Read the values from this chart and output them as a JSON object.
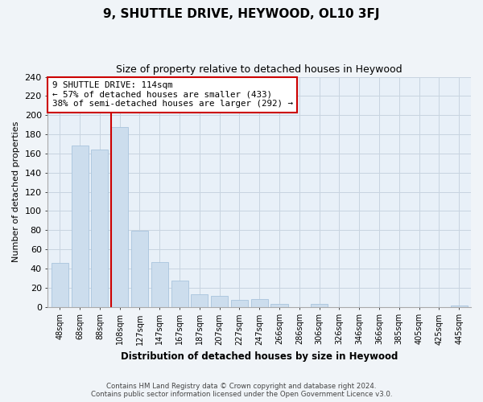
{
  "title": "9, SHUTTLE DRIVE, HEYWOOD, OL10 3FJ",
  "subtitle": "Size of property relative to detached houses in Heywood",
  "xlabel": "Distribution of detached houses by size in Heywood",
  "ylabel": "Number of detached properties",
  "bar_labels": [
    "48sqm",
    "68sqm",
    "88sqm",
    "108sqm",
    "127sqm",
    "147sqm",
    "167sqm",
    "187sqm",
    "207sqm",
    "227sqm",
    "247sqm",
    "266sqm",
    "286sqm",
    "306sqm",
    "326sqm",
    "346sqm",
    "366sqm",
    "385sqm",
    "405sqm",
    "425sqm",
    "445sqm"
  ],
  "bar_values": [
    46,
    168,
    164,
    188,
    79,
    47,
    27,
    13,
    11,
    7,
    8,
    3,
    0,
    3,
    0,
    0,
    0,
    0,
    0,
    0,
    1
  ],
  "bar_color": "#ccdded",
  "bar_edge_color": "#a8c4dd",
  "vline_x": 3.0,
  "vline_color": "#cc0000",
  "annotation_line1": "9 SHUTTLE DRIVE: 114sqm",
  "annotation_line2": "← 57% of detached houses are smaller (433)",
  "annotation_line3": "38% of semi-detached houses are larger (292) →",
  "annotation_box_color": "white",
  "annotation_box_edge": "#cc0000",
  "ylim": [
    0,
    240
  ],
  "yticks": [
    0,
    20,
    40,
    60,
    80,
    100,
    120,
    140,
    160,
    180,
    200,
    220,
    240
  ],
  "footer_line1": "Contains HM Land Registry data © Crown copyright and database right 2024.",
  "footer_line2": "Contains public sector information licensed under the Open Government Licence v3.0.",
  "bg_color": "#f0f4f8",
  "plot_bg_color": "#e8f0f8"
}
